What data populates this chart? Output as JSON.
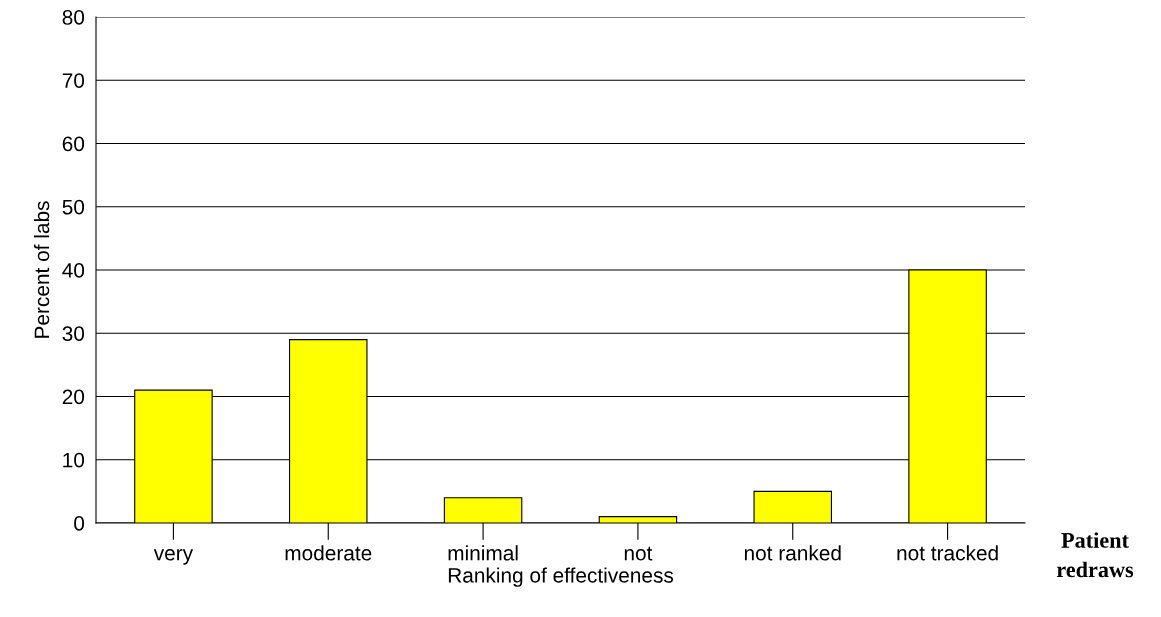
{
  "chart_data": {
    "type": "bar",
    "xlabel": "Ranking of effectiveness",
    "ylabel": "Percent of labs",
    "categories": [
      "very",
      "moderate",
      "minimal",
      "not",
      "not ranked",
      "not tracked"
    ],
    "values": [
      21,
      29,
      4,
      1,
      5,
      40
    ],
    "color": "#ffff00",
    "ylim": [
      0,
      80
    ],
    "yticks": [
      0,
      10,
      20,
      30,
      40,
      50,
      60,
      70,
      80
    ],
    "grid": "y",
    "annotations": [
      "Patient\nredraws"
    ]
  }
}
